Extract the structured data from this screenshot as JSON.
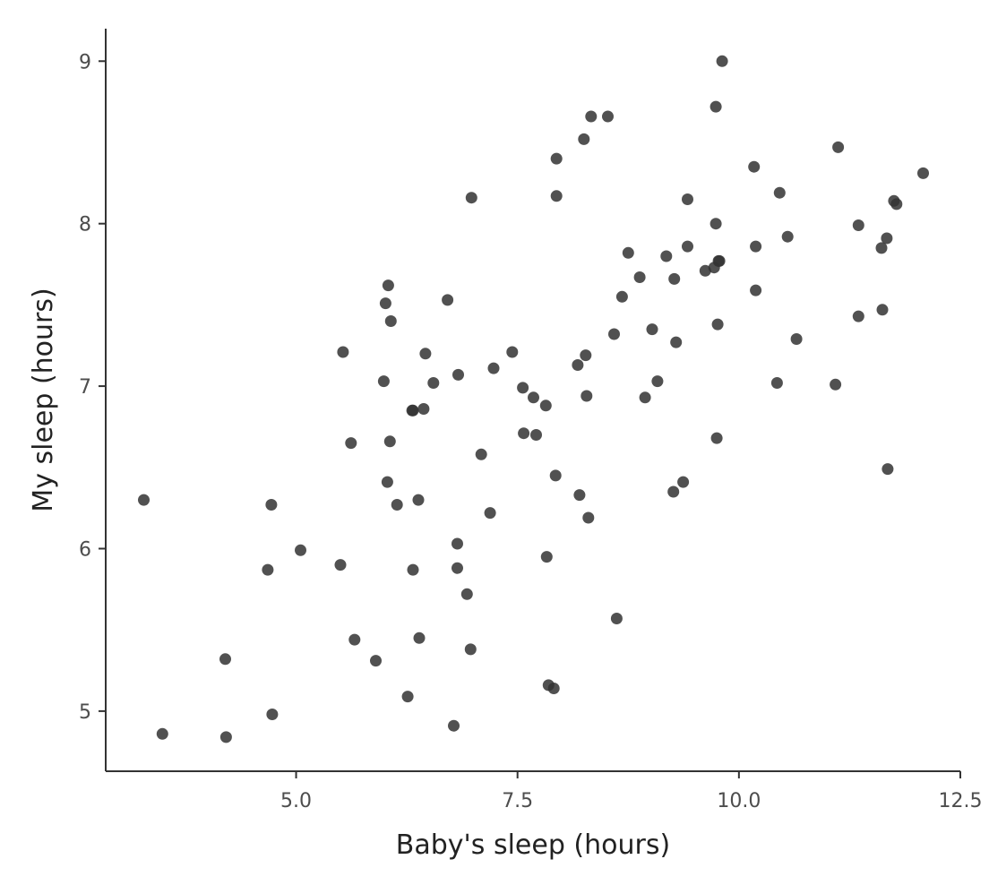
{
  "chart_data": {
    "type": "scatter",
    "title": "",
    "xlabel": "Baby's sleep (hours)",
    "ylabel": "My sleep (hours)",
    "xlim": [
      2.85,
      12.5
    ],
    "ylim": [
      4.63,
      9.2
    ],
    "x_ticks": [
      5.0,
      7.5,
      10.0,
      12.5
    ],
    "x_tick_labels": [
      "5.0",
      "7.5",
      "10.0",
      "12.5"
    ],
    "y_ticks": [
      5,
      6,
      7,
      8,
      9
    ],
    "y_tick_labels": [
      "5",
      "6",
      "7",
      "8",
      "9"
    ],
    "grid": false,
    "point_color": "#333333",
    "x": [
      3.28,
      3.49,
      4.2,
      4.21,
      4.68,
      4.72,
      4.73,
      5.05,
      5.5,
      5.53,
      5.62,
      5.66,
      5.9,
      5.99,
      6.01,
      6.03,
      6.04,
      6.06,
      6.07,
      6.14,
      6.26,
      6.31,
      6.32,
      6.32,
      6.38,
      6.39,
      6.44,
      6.46,
      6.55,
      6.71,
      6.78,
      6.82,
      6.82,
      6.83,
      6.93,
      6.97,
      6.98,
      7.09,
      7.19,
      7.23,
      7.44,
      7.56,
      7.57,
      7.68,
      7.71,
      7.82,
      7.83,
      7.85,
      7.91,
      7.93,
      7.94,
      7.94,
      8.18,
      8.2,
      8.25,
      8.27,
      8.28,
      8.3,
      8.33,
      8.52,
      8.59,
      8.62,
      8.68,
      8.75,
      8.88,
      8.94,
      9.02,
      9.08,
      9.18,
      9.26,
      9.27,
      9.29,
      9.37,
      9.42,
      9.42,
      9.62,
      9.72,
      9.74,
      9.74,
      9.75,
      9.76,
      9.77,
      9.78,
      9.81,
      10.17,
      10.19,
      10.19,
      10.43,
      10.46,
      10.55,
      10.65,
      11.09,
      11.12,
      11.35,
      11.35,
      11.61,
      11.62,
      11.67,
      11.68,
      11.75,
      11.78,
      12.08
    ],
    "y": [
      6.3,
      4.86,
      5.32,
      4.84,
      5.87,
      6.27,
      4.98,
      5.99,
      5.9,
      7.21,
      6.65,
      5.44,
      5.31,
      7.03,
      7.51,
      6.41,
      7.62,
      6.66,
      7.4,
      6.27,
      5.09,
      6.85,
      5.87,
      6.85,
      6.3,
      5.45,
      6.86,
      7.2,
      7.02,
      7.53,
      4.91,
      5.88,
      6.03,
      7.07,
      5.72,
      5.38,
      8.16,
      6.58,
      6.22,
      7.11,
      7.21,
      6.99,
      6.71,
      6.93,
      6.7,
      6.88,
      5.95,
      5.16,
      5.14,
      6.45,
      8.4,
      8.17,
      7.13,
      6.33,
      8.52,
      7.19,
      6.94,
      6.19,
      8.66,
      8.66,
      7.32,
      5.57,
      7.55,
      7.82,
      7.67,
      6.93,
      7.35,
      7.03,
      7.8,
      6.35,
      7.66,
      7.27,
      6.41,
      7.86,
      8.15,
      7.71,
      7.73,
      8.72,
      8.0,
      6.68,
      7.38,
      7.77,
      7.77,
      9.0,
      8.35,
      7.86,
      7.59,
      7.02,
      8.19,
      7.92,
      7.29,
      7.01,
      8.47,
      7.99,
      7.43,
      7.85,
      7.47,
      7.91,
      6.49,
      8.14,
      8.12,
      8.31
    ]
  }
}
